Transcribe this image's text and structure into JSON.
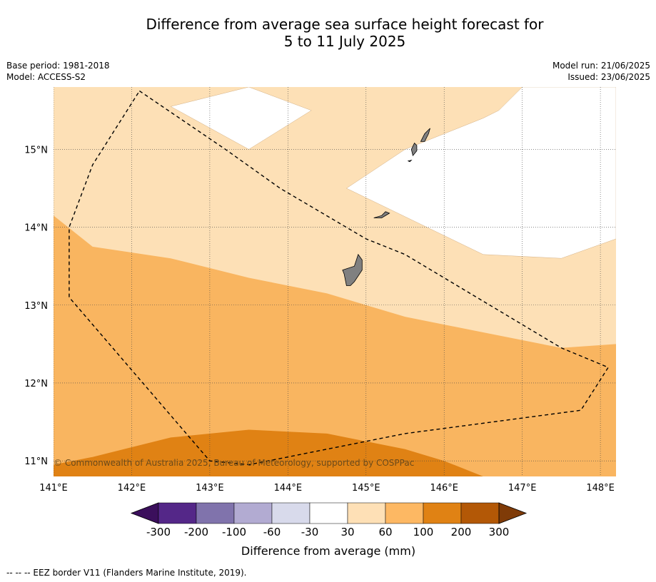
{
  "title": {
    "line1": "Difference from average sea surface height forecast for",
    "line2": "5 to 11 July 2025"
  },
  "meta_left": {
    "base_period": "Base period: 1981-2018",
    "model": "Model: ACCESS-S2"
  },
  "meta_right": {
    "model_run": "Model run: 21/06/2025",
    "issued": "Issued: 23/06/2025"
  },
  "map": {
    "lon_range": [
      141.0,
      148.2
    ],
    "lat_range": [
      10.8,
      15.8
    ],
    "lon_ticks": [
      141,
      142,
      143,
      144,
      145,
      146,
      147,
      148
    ],
    "lon_tick_labels": [
      "141°E",
      "142°E",
      "143°E",
      "144°E",
      "145°E",
      "146°E",
      "147°E",
      "148°E"
    ],
    "lat_ticks": [
      11,
      12,
      13,
      14,
      15
    ],
    "lat_tick_labels": [
      "11°N",
      "12°N",
      "13°N",
      "14°N",
      "15°N"
    ],
    "copyright": "© Commonwealth of Australia 2025, Bureau of Meteorology, supported by COSPPac",
    "colors": {
      "band_30_60": "#fde0b6",
      "band_60_100": "#f9b560",
      "band_100_200": "#e08214",
      "land": "#808080"
    },
    "eez_border": [
      [
        142.1,
        15.75
      ],
      [
        143.2,
        15.0
      ],
      [
        143.9,
        14.5
      ],
      [
        145.0,
        13.85
      ],
      [
        145.5,
        13.65
      ],
      [
        146.5,
        13.05
      ],
      [
        147.5,
        12.45
      ],
      [
        148.1,
        12.2
      ],
      [
        147.75,
        11.65
      ],
      [
        145.5,
        11.35
      ],
      [
        143.5,
        10.95
      ],
      [
        143.0,
        11.0
      ],
      [
        141.2,
        13.1
      ],
      [
        141.2,
        14.0
      ],
      [
        141.5,
        14.8
      ],
      [
        142.1,
        15.75
      ]
    ],
    "band_100_200_boundary": [
      [
        141.0,
        10.95
      ],
      [
        141.5,
        11.05
      ],
      [
        142.5,
        11.3
      ],
      [
        143.5,
        11.4
      ],
      [
        144.5,
        11.35
      ],
      [
        145.5,
        11.15
      ],
      [
        146.0,
        11.0
      ],
      [
        146.5,
        10.8
      ]
    ],
    "band_60_100_boundary": [
      [
        141.0,
        14.15
      ],
      [
        141.5,
        13.75
      ],
      [
        142.5,
        13.6
      ],
      [
        143.5,
        13.35
      ],
      [
        144.5,
        13.15
      ],
      [
        145.5,
        12.85
      ],
      [
        146.5,
        12.65
      ],
      [
        147.5,
        12.45
      ],
      [
        148.2,
        12.5
      ]
    ],
    "band_30_60_white_area_1": [
      [
        142.5,
        15.55
      ],
      [
        143.5,
        15.8
      ],
      [
        144.3,
        15.5
      ],
      [
        143.5,
        15.0
      ]
    ],
    "band_30_60_white_area_2": [
      [
        144.75,
        14.5
      ],
      [
        145.5,
        15.0
      ],
      [
        146.5,
        15.4
      ],
      [
        146.7,
        15.5
      ],
      [
        147.0,
        15.8
      ],
      [
        148.2,
        15.8
      ],
      [
        148.2,
        13.85
      ],
      [
        147.5,
        13.6
      ],
      [
        146.5,
        13.65
      ]
    ],
    "islands": {
      "guam": [
        [
          144.7,
          13.45
        ],
        [
          144.85,
          13.5
        ],
        [
          144.9,
          13.65
        ],
        [
          144.95,
          13.58
        ],
        [
          144.95,
          13.45
        ],
        [
          144.85,
          13.3
        ],
        [
          144.8,
          13.25
        ],
        [
          144.75,
          13.25
        ],
        [
          144.72,
          13.4
        ]
      ],
      "rota": [
        [
          145.1,
          14.12
        ],
        [
          145.2,
          14.15
        ],
        [
          145.25,
          14.2
        ],
        [
          145.3,
          14.18
        ],
        [
          145.2,
          14.12
        ]
      ],
      "tinian": [
        [
          145.6,
          14.92
        ],
        [
          145.65,
          14.98
        ],
        [
          145.65,
          15.05
        ],
        [
          145.62,
          15.08
        ],
        [
          145.58,
          15.0
        ]
      ],
      "saipan": [
        [
          145.7,
          15.1
        ],
        [
          145.75,
          15.2
        ],
        [
          145.82,
          15.27
        ],
        [
          145.8,
          15.2
        ],
        [
          145.75,
          15.1
        ]
      ],
      "aguijan": [
        [
          145.54,
          14.85
        ],
        [
          145.58,
          14.86
        ],
        [
          145.56,
          14.84
        ]
      ]
    }
  },
  "colorbar": {
    "tick_labels": [
      "-300",
      "-200",
      "-100",
      "-60",
      "-30",
      "30",
      "60",
      "100",
      "200",
      "300"
    ],
    "colors": [
      "#3b0f5c",
      "#542788",
      "#8073ac",
      "#b2abd2",
      "#d8daeb",
      "#ffffff",
      "#fee0b6",
      "#fdb863",
      "#e08214",
      "#b35806",
      "#7f3b08"
    ],
    "label": "Difference from average (mm)"
  },
  "footnote": "--  --  -- EEZ border V11 (Flanders Marine Institute, 2019)."
}
